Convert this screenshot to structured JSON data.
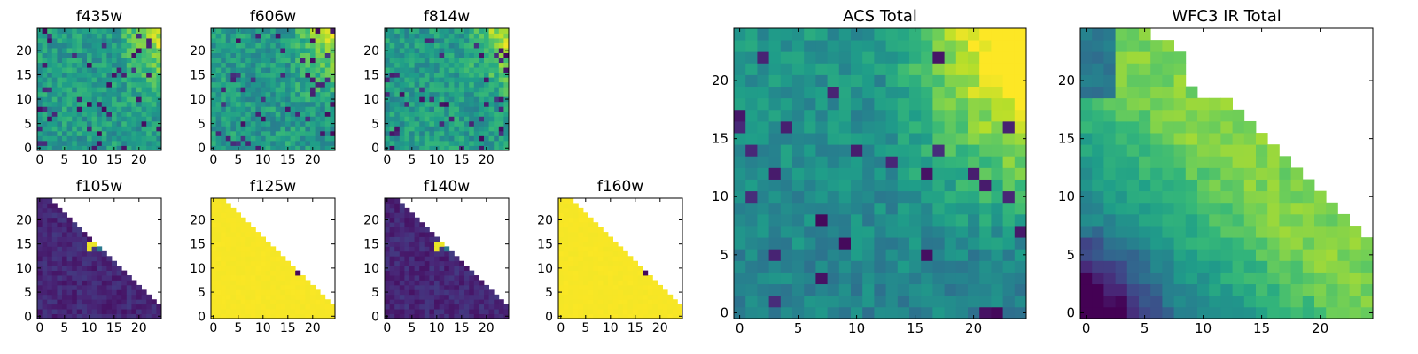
{
  "chart_data": [
    {
      "type": "heatmap",
      "title": "f435w",
      "xlabel": "",
      "ylabel": "",
      "xlim": [
        0,
        25
      ],
      "ylim": [
        0,
        25
      ],
      "xticks": [
        "0",
        "5",
        "10",
        "15",
        "20"
      ],
      "yticks": [
        "0",
        "5",
        "10",
        "15",
        "20"
      ],
      "colormap": "viridis",
      "pattern": "noise_bright_upper_right",
      "seed": 11
    },
    {
      "type": "heatmap",
      "title": "f606w",
      "xlabel": "",
      "ylabel": "",
      "xlim": [
        0,
        25
      ],
      "ylim": [
        0,
        25
      ],
      "xticks": [
        "0",
        "5",
        "10",
        "15",
        "20"
      ],
      "yticks": [
        "0",
        "5",
        "10",
        "15",
        "20"
      ],
      "colormap": "viridis",
      "pattern": "noise_bright_upper_right",
      "seed": 23
    },
    {
      "type": "heatmap",
      "title": "f814w",
      "xlabel": "",
      "ylabel": "",
      "xlim": [
        0,
        25
      ],
      "ylim": [
        0,
        25
      ],
      "xticks": [
        "0",
        "5",
        "10",
        "15",
        "20"
      ],
      "yticks": [
        "0",
        "5",
        "10",
        "15",
        "20"
      ],
      "colormap": "viridis",
      "pattern": "noise_bright_upper_right",
      "seed": 37
    },
    {
      "type": "heatmap",
      "title": "f105w",
      "xlabel": "",
      "ylabel": "",
      "xlim": [
        0,
        25
      ],
      "ylim": [
        0,
        25
      ],
      "xticks": [
        "0",
        "5",
        "10",
        "15",
        "20"
      ],
      "yticks": [
        "0",
        "5",
        "10",
        "15",
        "20"
      ],
      "colormap": "viridis",
      "pattern": "dark_triangle_bright_spot",
      "masked_region": "upper-right triangle (blank)",
      "seed": 41
    },
    {
      "type": "heatmap",
      "title": "f125w",
      "xlabel": "",
      "ylabel": "",
      "xlim": [
        0,
        25
      ],
      "ylim": [
        0,
        25
      ],
      "xticks": [
        "0",
        "5",
        "10",
        "15",
        "20"
      ],
      "yticks": [
        "0",
        "5",
        "10",
        "15",
        "20"
      ],
      "colormap": "viridis",
      "pattern": "bright_triangle_dark_spot",
      "masked_region": "upper-right triangle (blank)",
      "seed": 53
    },
    {
      "type": "heatmap",
      "title": "f140w",
      "xlabel": "",
      "ylabel": "",
      "xlim": [
        0,
        25
      ],
      "ylim": [
        0,
        25
      ],
      "xticks": [
        "0",
        "5",
        "10",
        "15",
        "20"
      ],
      "yticks": [
        "0",
        "5",
        "10",
        "15",
        "20"
      ],
      "colormap": "viridis",
      "pattern": "dark_triangle_bright_spot",
      "masked_region": "upper-right triangle (blank)",
      "seed": 67
    },
    {
      "type": "heatmap",
      "title": "f160w",
      "xlabel": "",
      "ylabel": "",
      "xlim": [
        0,
        25
      ],
      "ylim": [
        0,
        25
      ],
      "xticks": [
        "0",
        "5",
        "10",
        "15",
        "20"
      ],
      "yticks": [
        "0",
        "5",
        "10",
        "15",
        "20"
      ],
      "colormap": "viridis",
      "pattern": "bright_triangle_dark_spot",
      "masked_region": "upper-right triangle (blank)",
      "seed": 71
    },
    {
      "type": "heatmap",
      "title": "ACS Total",
      "xlabel": "",
      "ylabel": "",
      "xlim": [
        0,
        25
      ],
      "ylim": [
        0,
        25
      ],
      "xticks": [
        "0",
        "5",
        "10",
        "15",
        "20"
      ],
      "yticks": [
        "0",
        "5",
        "10",
        "15",
        "20"
      ],
      "colormap": "viridis",
      "pattern": "acs_total",
      "seed": 83
    },
    {
      "type": "heatmap",
      "title": "WFC3 IR Total",
      "xlabel": "",
      "ylabel": "",
      "xlim": [
        0,
        25
      ],
      "ylim": [
        0,
        25
      ],
      "xticks": [
        "0",
        "5",
        "10",
        "15",
        "20"
      ],
      "yticks": [
        "0",
        "5",
        "10",
        "15",
        "20"
      ],
      "colormap": "viridis",
      "pattern": "ir_total",
      "masked_region": "upper-right triangle (blank)",
      "seed": 97
    }
  ]
}
